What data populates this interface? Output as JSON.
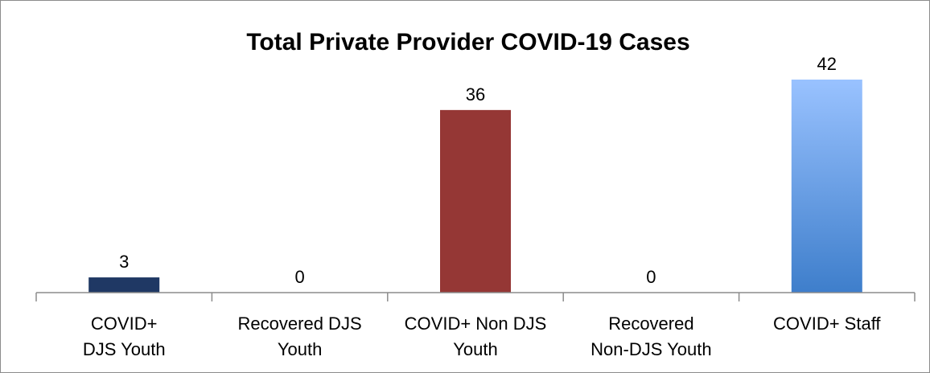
{
  "chart_data": {
    "type": "bar",
    "title": "Total Private Provider COVID-19 Cases",
    "categories": [
      [
        "COVID+",
        "DJS Youth"
      ],
      [
        "Recovered DJS",
        "Youth"
      ],
      [
        "COVID+ Non DJS",
        "Youth"
      ],
      [
        "Recovered",
        "Non-DJS Youth"
      ],
      [
        "COVID+ Staff"
      ]
    ],
    "values": [
      3,
      0,
      36,
      0,
      42
    ],
    "data_labels": [
      "3",
      "0",
      "36",
      "0",
      "42"
    ],
    "colors": [
      "#1f3864",
      "#1f3864",
      "#953735",
      "#953735",
      "#4a86d0"
    ],
    "staff_gradient": [
      "#99c2ff",
      "#3e7ecb"
    ],
    "xlabel": "",
    "ylabel": "",
    "ylim": [
      0,
      42
    ],
    "grid": false,
    "legend": "none"
  }
}
